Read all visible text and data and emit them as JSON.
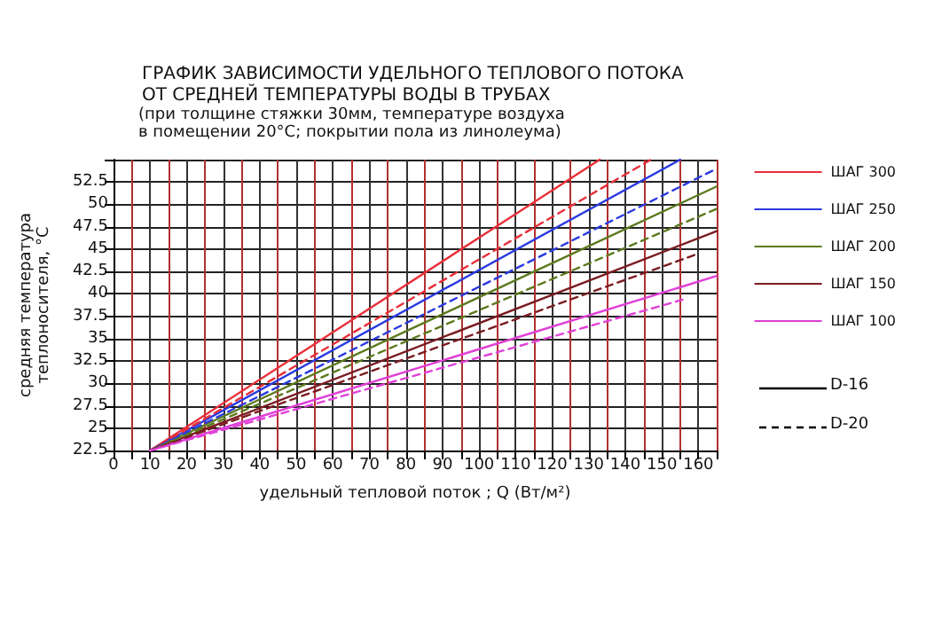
{
  "chart_data": {
    "type": "line",
    "title": "ГРАФИК ЗАВИСИМОСТИ УДЕЛЬНОГО ТЕПЛОВОГО ПОТОКА\nОТ СРЕДНЕЙ ТЕМПЕРАТУРЫ ВОДЫ В ТРУБАХ",
    "subtitle": "(при толщине стяжки 30мм, температуре воздуха\nв помещении 20°C; покрытии пола из линолеума)",
    "xlabel": "удельный тепловой поток ; Q (Вт/м²)",
    "ylabel": "средняя температура\nтеплоносителя, °C",
    "series": [
      {
        "name": "ШАГ 300",
        "color": "#e8303a",
        "x": [
          10,
          133
        ],
        "values": [
          22.5,
          55
        ],
        "line_style": "solid"
      },
      {
        "name": "ШАГ 250",
        "color": "#2a3ae0",
        "x": [
          10,
          155
        ],
        "values": [
          22.5,
          55
        ],
        "line_style": "solid"
      },
      {
        "name": "ШАГ 200",
        "color": "#5c7a1e",
        "x": [
          10,
          165
        ],
        "values": [
          22.5,
          52
        ],
        "line_style": "solid"
      },
      {
        "name": "ШАГ 150",
        "color": "#7a1c22",
        "x": [
          10,
          165
        ],
        "values": [
          22.5,
          47
        ],
        "line_style": "solid"
      },
      {
        "name": "ШАГ 100",
        "color": "#e040d8",
        "x": [
          10,
          165
        ],
        "values": [
          22.5,
          42
        ],
        "line_style": "solid"
      },
      {
        "color": "#e8303a",
        "x": [
          10,
          147
        ],
        "values": [
          22.5,
          55
        ],
        "line_style": "dashed"
      },
      {
        "color": "#2a3ae0",
        "x": [
          10,
          165
        ],
        "values": [
          22.5,
          54
        ],
        "line_style": "dashed"
      },
      {
        "color": "#5c7a1e",
        "x": [
          10,
          165
        ],
        "values": [
          22.5,
          49.5
        ],
        "line_style": "dashed"
      },
      {
        "color": "#7a1c22",
        "x": [
          10,
          160
        ],
        "values": [
          22.5,
          44.5
        ],
        "line_style": "dashed"
      },
      {
        "color": "#e040d8",
        "x": [
          10,
          157
        ],
        "values": [
          22.5,
          39.5
        ],
        "line_style": "dashed"
      }
    ],
    "xlim": [
      0,
      165
    ],
    "ylim": [
      22.5,
      55
    ],
    "xticks": [
      0,
      {
        "value": 5,
        "label": null
      },
      10,
      {
        "value": 15,
        "label": null
      },
      20,
      {
        "value": 25,
        "label": null
      },
      30,
      {
        "value": 35,
        "label": null
      },
      40,
      {
        "value": 45,
        "label": null
      },
      50,
      {
        "value": 55,
        "label": null
      },
      60,
      {
        "value": 65,
        "label": null
      },
      70,
      {
        "value": 75,
        "label": null
      },
      80,
      {
        "value": 85,
        "label": null
      },
      90,
      {
        "value": 95,
        "label": null
      },
      100,
      {
        "value": 105,
        "label": null
      },
      110,
      {
        "value": 115,
        "label": null
      },
      120,
      {
        "value": 125,
        "label": null
      },
      130,
      {
        "value": 135,
        "label": null
      },
      140,
      {
        "value": 145,
        "label": null
      },
      150,
      {
        "value": 155,
        "label": null
      },
      160,
      {
        "value": 165,
        "label": null
      }
    ],
    "yticks": [
      22.5,
      25,
      27.5,
      30,
      32.5,
      35,
      37.5,
      40,
      42.5,
      45,
      47.5,
      50,
      52.5,
      {
        "value": 55,
        "label": null
      }
    ],
    "grid": true,
    "legend": "right",
    "marker": "none",
    "annotations": [
      "D-16",
      "D-20"
    ]
  }
}
